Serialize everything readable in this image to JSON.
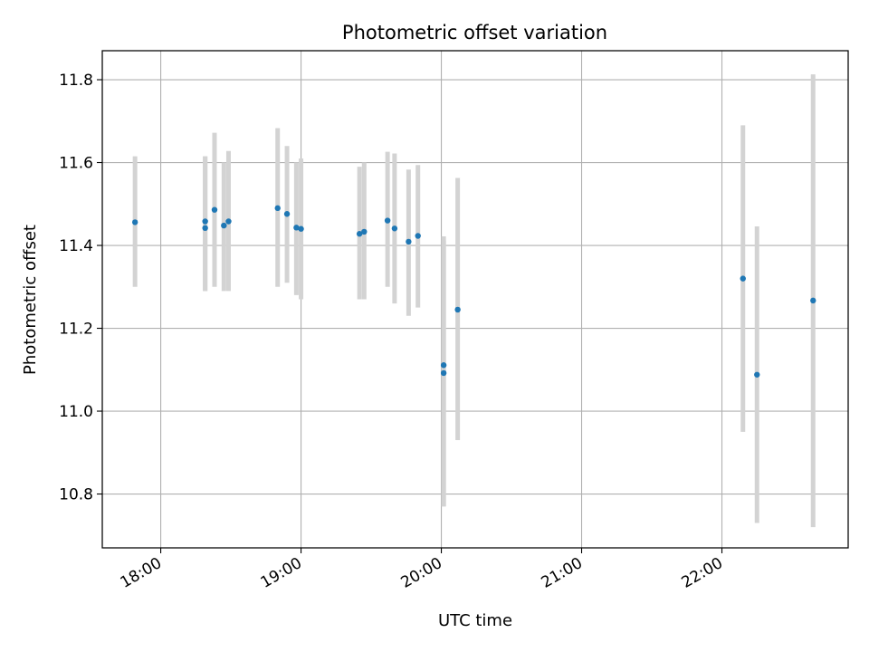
{
  "chart_data": {
    "type": "scatter",
    "title": "Photometric offset variation",
    "xlabel": "UTC time",
    "ylabel": "Photometric offset",
    "x_is_time": true,
    "xlim": [
      "17:35",
      "22:54"
    ],
    "ylim": [
      10.67,
      11.87
    ],
    "grid": true,
    "xticks": [
      "18:00",
      "19:00",
      "20:00",
      "21:00",
      "22:00"
    ],
    "yticks": [
      10.8,
      11.0,
      11.2,
      11.4,
      11.6,
      11.8
    ],
    "colors": {
      "points": "#1f77b4",
      "errorbars": "#d3d3d3"
    },
    "series": [
      {
        "points": [
          {
            "x": "17:49",
            "y": 11.456,
            "low": 11.3,
            "high": 11.615
          },
          {
            "x": "18:19",
            "y": 11.442,
            "low": 11.29,
            "high": 11.615
          },
          {
            "x": "18:19",
            "y": 11.458,
            "low": 11.29,
            "high": 11.615
          },
          {
            "x": "18:23",
            "y": 11.486,
            "low": 11.3,
            "high": 11.672
          },
          {
            "x": "18:27",
            "y": 11.448,
            "low": 11.29,
            "high": 11.6
          },
          {
            "x": "18:29",
            "y": 11.458,
            "low": 11.29,
            "high": 11.628
          },
          {
            "x": "18:50",
            "y": 11.49,
            "low": 11.3,
            "high": 11.683
          },
          {
            "x": "18:54",
            "y": 11.476,
            "low": 11.31,
            "high": 11.64
          },
          {
            "x": "18:58",
            "y": 11.443,
            "low": 11.28,
            "high": 11.6
          },
          {
            "x": "19:00",
            "y": 11.44,
            "low": 11.27,
            "high": 11.61
          },
          {
            "x": "19:25",
            "y": 11.428,
            "low": 11.27,
            "high": 11.59
          },
          {
            "x": "19:27",
            "y": 11.433,
            "low": 11.27,
            "high": 11.6
          },
          {
            "x": "19:37",
            "y": 11.46,
            "low": 11.3,
            "high": 11.626
          },
          {
            "x": "19:40",
            "y": 11.441,
            "low": 11.26,
            "high": 11.622
          },
          {
            "x": "19:46",
            "y": 11.409,
            "low": 11.23,
            "high": 11.583
          },
          {
            "x": "19:50",
            "y": 11.423,
            "low": 11.25,
            "high": 11.594
          },
          {
            "x": "20:01",
            "y": 11.111,
            "low": 10.77,
            "high": 11.422
          },
          {
            "x": "20:01",
            "y": 11.092,
            "low": 10.77,
            "high": 11.412
          },
          {
            "x": "20:07",
            "y": 11.245,
            "low": 10.93,
            "high": 11.563
          },
          {
            "x": "22:09",
            "y": 11.32,
            "low": 10.95,
            "high": 11.69
          },
          {
            "x": "22:15",
            "y": 11.088,
            "low": 10.73,
            "high": 11.446
          },
          {
            "x": "22:39",
            "y": 11.267,
            "low": 10.72,
            "high": 11.813
          }
        ]
      }
    ]
  }
}
